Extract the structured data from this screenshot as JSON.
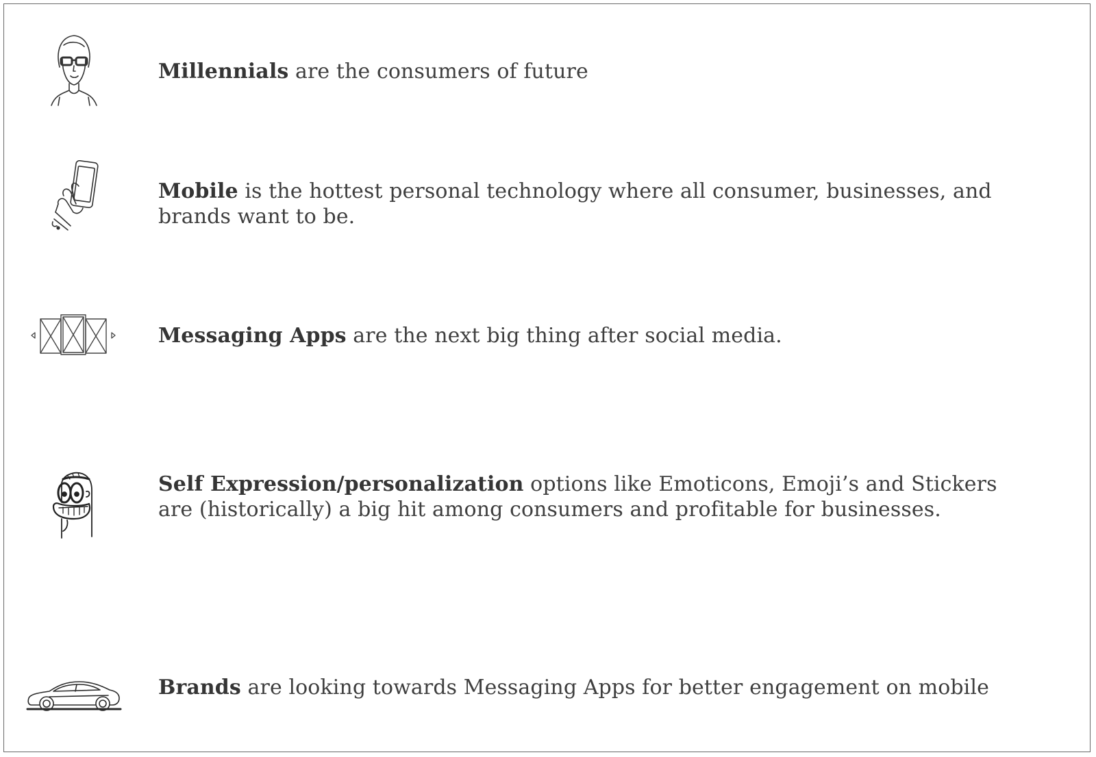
{
  "items": [
    {
      "icon": "woman-with-glasses-icon",
      "bold": "Millennials",
      "rest": " are the consumers of future"
    },
    {
      "icon": "hand-holding-phone-icon",
      "bold": "Mobile",
      "rest": " is the hottest personal technology where all consumer, businesses, and brands want to be."
    },
    {
      "icon": "app-screens-carousel-icon",
      "bold": "Messaging Apps",
      "rest": " are the next big thing after social media."
    },
    {
      "icon": "grinning-cartoon-character-icon",
      "bold": "Self Expression/personalization",
      "rest": " options like Emoticons, Emoji’s and Stickers are (historically) a big hit among consumers and profitable for businesses."
    },
    {
      "icon": "sports-car-icon",
      "bold": "Brands",
      "rest": " are looking towards Messaging Apps for better engagement on mobile"
    }
  ]
}
